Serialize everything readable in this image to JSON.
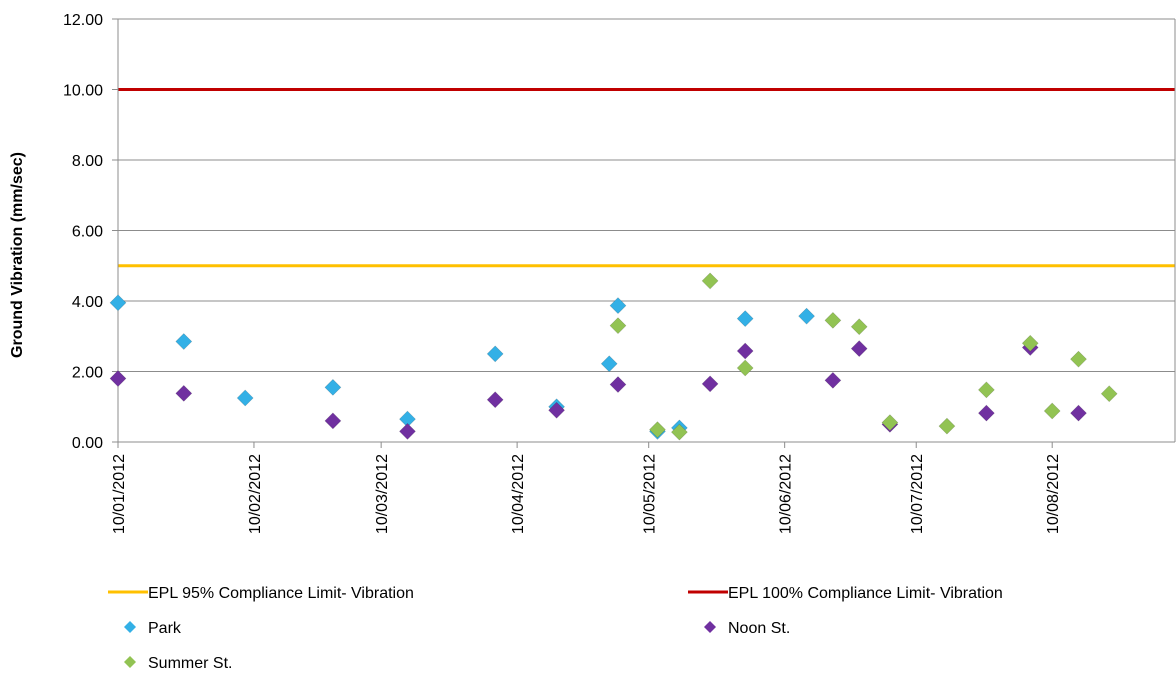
{
  "chart_data": {
    "type": "scatter",
    "ylabel": "Ground Vibration (mm/sec)",
    "ylim": [
      0,
      12
    ],
    "xlim": [
      "2012-01-10",
      "2012-09-07"
    ],
    "y_ticks": [
      "0.00",
      "2.00",
      "4.00",
      "6.00",
      "8.00",
      "10.00",
      "12.00"
    ],
    "x_ticks": [
      {
        "label": "10/01/2012",
        "date": "2012-01-10"
      },
      {
        "label": "10/02/2012",
        "date": "2012-02-10"
      },
      {
        "label": "10/03/2012",
        "date": "2012-03-10"
      },
      {
        "label": "10/04/2012",
        "date": "2012-04-10"
      },
      {
        "label": "10/05/2012",
        "date": "2012-05-10"
      },
      {
        "label": "10/06/2012",
        "date": "2012-06-10"
      },
      {
        "label": "10/07/2012",
        "date": "2012-07-10"
      },
      {
        "label": "10/08/2012",
        "date": "2012-08-10"
      }
    ],
    "grid": "horizontal",
    "legend_position": "bottom",
    "limits": [
      {
        "name": "EPL 95% Compliance Limit- Vibration",
        "value": 5.0,
        "color": "#FFC000"
      },
      {
        "name": "EPL 100% Compliance Limit- Vibration",
        "value": 10.0,
        "color": "#C00000"
      }
    ],
    "series": [
      {
        "name": "Park",
        "color": "#33B0E6",
        "points": [
          {
            "x": "2012-01-10",
            "y": 3.95
          },
          {
            "x": "2012-01-25",
            "y": 2.85
          },
          {
            "x": "2012-02-08",
            "y": 1.25
          },
          {
            "x": "2012-02-28",
            "y": 1.55
          },
          {
            "x": "2012-03-16",
            "y": 0.65
          },
          {
            "x": "2012-04-05",
            "y": 2.5
          },
          {
            "x": "2012-04-19",
            "y": 1.0
          },
          {
            "x": "2012-05-01",
            "y": 2.22
          },
          {
            "x": "2012-05-03",
            "y": 3.87
          },
          {
            "x": "2012-05-12",
            "y": 0.3
          },
          {
            "x": "2012-05-17",
            "y": 0.4
          },
          {
            "x": "2012-06-01",
            "y": 3.5
          },
          {
            "x": "2012-06-15",
            "y": 3.57
          }
        ]
      },
      {
        "name": "Noon St.",
        "color": "#7030A0",
        "points": [
          {
            "x": "2012-01-10",
            "y": 1.8
          },
          {
            "x": "2012-01-25",
            "y": 1.38
          },
          {
            "x": "2012-02-28",
            "y": 0.6
          },
          {
            "x": "2012-03-16",
            "y": 0.3
          },
          {
            "x": "2012-04-05",
            "y": 1.2
          },
          {
            "x": "2012-04-19",
            "y": 0.9
          },
          {
            "x": "2012-05-03",
            "y": 1.63
          },
          {
            "x": "2012-05-24",
            "y": 1.65
          },
          {
            "x": "2012-06-01",
            "y": 2.58
          },
          {
            "x": "2012-06-21",
            "y": 1.75
          },
          {
            "x": "2012-06-27",
            "y": 2.65
          },
          {
            "x": "2012-07-04",
            "y": 0.5
          },
          {
            "x": "2012-07-26",
            "y": 0.82
          },
          {
            "x": "2012-08-05",
            "y": 2.68
          },
          {
            "x": "2012-08-16",
            "y": 0.82
          }
        ]
      },
      {
        "name": "Summer St.",
        "color": "#92C353",
        "points": [
          {
            "x": "2012-05-03",
            "y": 3.3
          },
          {
            "x": "2012-05-12",
            "y": 0.35
          },
          {
            "x": "2012-05-17",
            "y": 0.28
          },
          {
            "x": "2012-05-24",
            "y": 4.57
          },
          {
            "x": "2012-06-01",
            "y": 2.1
          },
          {
            "x": "2012-06-21",
            "y": 3.45
          },
          {
            "x": "2012-06-27",
            "y": 3.27
          },
          {
            "x": "2012-07-04",
            "y": 0.55
          },
          {
            "x": "2012-07-17",
            "y": 0.45
          },
          {
            "x": "2012-07-26",
            "y": 1.48
          },
          {
            "x": "2012-08-05",
            "y": 2.8
          },
          {
            "x": "2012-08-10",
            "y": 0.88
          },
          {
            "x": "2012-08-16",
            "y": 2.35
          },
          {
            "x": "2012-08-23",
            "y": 1.37
          }
        ]
      }
    ]
  }
}
